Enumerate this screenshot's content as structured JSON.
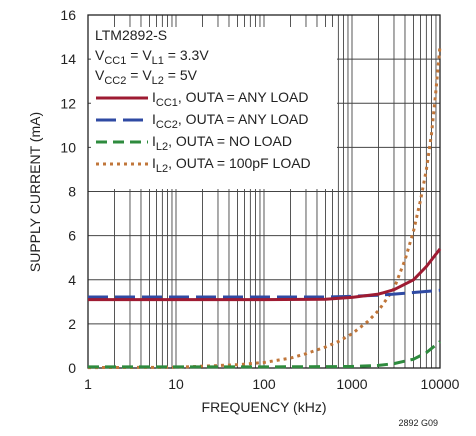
{
  "chart_data": {
    "type": "line",
    "x_scale": "log",
    "xlabel": "FREQUENCY (kHz)",
    "ylabel": "SUPPLY CURRENT (mA)",
    "xlim": [
      1,
      10000
    ],
    "ylim": [
      0,
      16
    ],
    "x_ticks": [
      "1",
      "10",
      "100",
      "1000",
      "10000"
    ],
    "y_ticks": [
      "0",
      "2",
      "4",
      "6",
      "8",
      "10",
      "12",
      "14",
      "16"
    ],
    "grid": true,
    "legend_position": "top-left",
    "figure_id": "2892 G09",
    "annotation": {
      "line1": "LTM2892-S",
      "line2": {
        "a": "V",
        "a_sub": "CC1",
        "b": " = V",
        "b_sub": "L1",
        "c": " = 3.3V"
      },
      "line3": {
        "a": "V",
        "a_sub": "CC2",
        "b": " = V",
        "b_sub": "L2",
        "c": " = 5V"
      }
    },
    "series": [
      {
        "name": "I_CC1, OUTA = ANY LOAD",
        "label_main": "I",
        "label_sub": "CC1",
        "label_rest": ", OUTA = ANY LOAD",
        "color": "#9e1b32",
        "dash": "none",
        "points": [
          [
            1,
            3.1
          ],
          [
            10,
            3.1
          ],
          [
            100,
            3.1
          ],
          [
            500,
            3.12
          ],
          [
            1000,
            3.2
          ],
          [
            2000,
            3.35
          ],
          [
            3000,
            3.55
          ],
          [
            5000,
            4.0
          ],
          [
            7000,
            4.6
          ],
          [
            10000,
            5.4
          ]
        ]
      },
      {
        "name": "I_CC2, OUTA = ANY LOAD",
        "label_main": "I",
        "label_sub": "CC2",
        "label_rest": ", OUTA = ANY LOAD",
        "color": "#2f4aa3",
        "dash": "20,7",
        "points": [
          [
            1,
            3.22
          ],
          [
            10,
            3.22
          ],
          [
            100,
            3.22
          ],
          [
            500,
            3.22
          ],
          [
            1000,
            3.25
          ],
          [
            2000,
            3.3
          ],
          [
            3000,
            3.35
          ],
          [
            5000,
            3.42
          ],
          [
            10000,
            3.52
          ]
        ]
      },
      {
        "name": "I_L2, OUTA = NO LOAD",
        "label_main": "I",
        "label_sub": "L2",
        "label_rest": ", OUTA = NO LOAD",
        "color": "#2e8b3e",
        "dash": "11,6",
        "points": [
          [
            1,
            0.05
          ],
          [
            10,
            0.05
          ],
          [
            100,
            0.05
          ],
          [
            1000,
            0.07
          ],
          [
            2000,
            0.12
          ],
          [
            3000,
            0.2
          ],
          [
            5000,
            0.4
          ],
          [
            7000,
            0.7
          ],
          [
            10000,
            1.2
          ]
        ]
      },
      {
        "name": "I_L2, OUTA = 100pF LOAD",
        "label_main": "I",
        "label_sub": "L2",
        "label_rest": ", OUTA = 100pF LOAD",
        "color": "#c0763a",
        "dash": "3,4",
        "points": [
          [
            1,
            0.02
          ],
          [
            10,
            0.03
          ],
          [
            50,
            0.15
          ],
          [
            100,
            0.25
          ],
          [
            200,
            0.45
          ],
          [
            300,
            0.65
          ],
          [
            500,
            0.95
          ],
          [
            700,
            1.2
          ],
          [
            1000,
            1.55
          ],
          [
            1500,
            2.1
          ],
          [
            2000,
            2.6
          ],
          [
            3000,
            3.6
          ],
          [
            4000,
            4.9
          ],
          [
            5000,
            6.2
          ],
          [
            6000,
            7.6
          ],
          [
            7000,
            9.0
          ],
          [
            8000,
            10.6
          ],
          [
            9000,
            12.6
          ],
          [
            10000,
            14.6
          ]
        ]
      }
    ]
  }
}
